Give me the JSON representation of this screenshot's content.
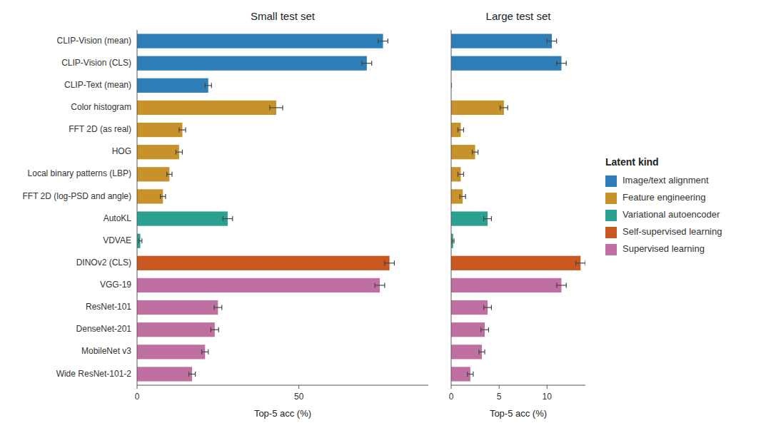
{
  "chart_data": [
    {
      "type": "bar",
      "orientation": "horizontal",
      "title": "Small test set",
      "x_label": "Top-5 acc (%)",
      "categories": [
        "CLIP-Vision (mean)",
        "CLIP-Vision (CLS)",
        "CLIP-Text (mean)",
        "Color histogram",
        "FFT 2D (as real)",
        "HOG",
        "Local binary patterns (LBP)",
        "FFT 2D (log-PSD and angle)",
        "AutoKL",
        "VDVAE",
        "DINOv2 (CLS)",
        "VGG-19",
        "ResNet-101",
        "DenseNet-201",
        "MobileNet v3",
        "Wide ResNet-101-2"
      ],
      "values": [
        76,
        71,
        22,
        43,
        14,
        13,
        10,
        8,
        28,
        1,
        78,
        75,
        25,
        24,
        21,
        17
      ],
      "errors": [
        1.5,
        1.5,
        1.0,
        2.0,
        1.0,
        1.0,
        0.8,
        0.8,
        1.5,
        0.5,
        1.5,
        1.5,
        1.2,
        1.2,
        1.0,
        1.0
      ],
      "colors": [
        "#2E7FB8",
        "#2E7FB8",
        "#2E7FB8",
        "#C8922A",
        "#C8922A",
        "#C8922A",
        "#C8922A",
        "#C8922A",
        "#2CA090",
        "#2CA090",
        "#C85820",
        "#C070A0",
        "#C070A0",
        "#C070A0",
        "#C070A0",
        "#C070A0"
      ],
      "xlim": [
        0,
        90
      ],
      "xticks": [
        0,
        50
      ]
    },
    {
      "type": "bar",
      "orientation": "horizontal",
      "title": "Large test set",
      "x_label": "Top-5 acc (%)",
      "categories": [
        null,
        null,
        null,
        null,
        null,
        null,
        null,
        null,
        null,
        null,
        null,
        null,
        null,
        null,
        null,
        null
      ],
      "values": [
        10.5,
        11.5,
        0.0,
        5.5,
        1.0,
        2.5,
        1.0,
        1.2,
        3.8,
        0.2,
        13.5,
        11.5,
        3.8,
        3.5,
        3.2,
        2.0
      ],
      "errors": [
        0.5,
        0.5,
        0.0,
        0.4,
        0.3,
        0.3,
        0.3,
        0.3,
        0.4,
        0.1,
        0.5,
        0.5,
        0.4,
        0.4,
        0.3,
        0.3
      ],
      "colors": [
        "#2E7FB8",
        "#2E7FB8",
        "#2E7FB8",
        "#C8922A",
        "#C8922A",
        "#C8922A",
        "#C8922A",
        "#C8922A",
        "#2CA090",
        "#2CA090",
        "#C85820",
        "#C070A0",
        "#C070A0",
        "#C070A0",
        "#C070A0",
        "#C070A0"
      ],
      "xlim": [
        0,
        14
      ],
      "xticks": [
        0,
        5,
        10
      ],
      "legend": "right",
      "legend_title": "Latent kind",
      "legend_entries": [
        {
          "name": "Image/text alignment",
          "color": "#2E7FB8"
        },
        {
          "name": "Feature engineering",
          "color": "#C8922A"
        },
        {
          "name": "Variational autoencoder",
          "color": "#2CA090"
        },
        {
          "name": "Self-supervised learning",
          "color": "#C85820"
        },
        {
          "name": "Supervised learning",
          "color": "#C070A0"
        }
      ]
    }
  ]
}
